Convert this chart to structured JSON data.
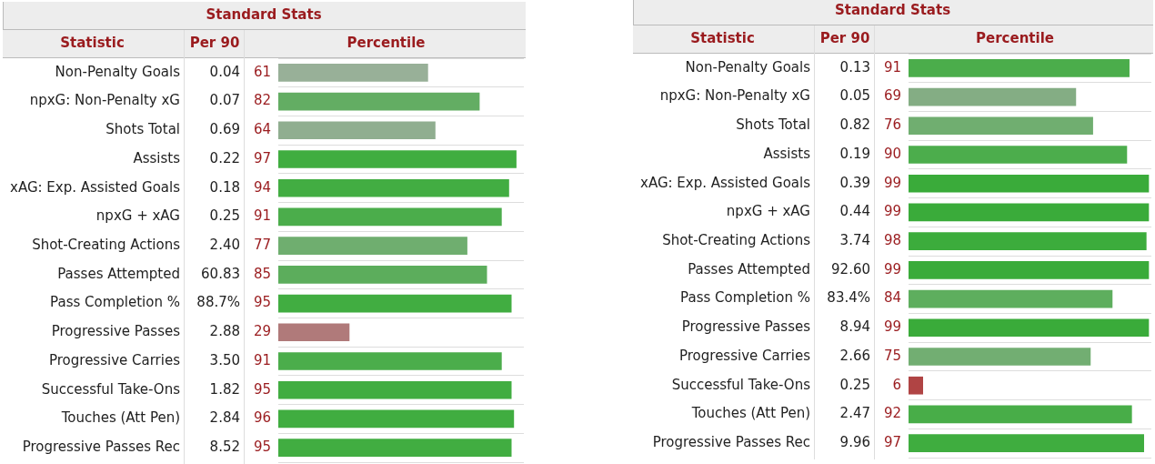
{
  "chart_data": [
    {
      "type": "bar",
      "orientation": "horizontal",
      "title": "Standard Stats",
      "ylabel": "Statistic",
      "xlabel": "Percentile",
      "categories": [
        "Non-Penalty Goals",
        "npxG: Non-Penalty xG",
        "Shots Total",
        "Assists",
        "xAG: Exp. Assisted Goals",
        "npxG + xAG",
        "Shot-Creating Actions",
        "Passes Attempted",
        "Pass Completion %",
        "Progressive Passes",
        "Progressive Carries",
        "Successful Take-Ons",
        "Touches (Att Pen)",
        "Progressive Passes Rec"
      ],
      "values": [
        61,
        82,
        64,
        97,
        94,
        91,
        77,
        85,
        95,
        29,
        91,
        95,
        96,
        95
      ],
      "colors": [
        "#98b098",
        "#63ad63",
        "#90ae90",
        "#40ad40",
        "#42ad42",
        "#4bad4b",
        "#6fae6f",
        "#5cad5c",
        "#41ad41",
        "#b07a7a",
        "#4bad4b",
        "#41ad41",
        "#40ad40",
        "#41ad41"
      ],
      "xlim": [
        0,
        100
      ],
      "data_labels": true,
      "tick_labels": "y",
      "grid": "y",
      "annotations": [
        "Per 90",
        "0.04",
        "0.07",
        "0.69",
        "0.22",
        "0.18",
        "0.25",
        "2.40",
        "60.83",
        "88.7%",
        "2.88",
        "3.50",
        "1.82",
        "2.84",
        "8.52"
      ]
    },
    {
      "type": "bar",
      "orientation": "horizontal",
      "title": "Standard Stats",
      "ylabel": "Statistic",
      "xlabel": "Percentile",
      "categories": [
        "Non-Penalty Goals",
        "npxG: Non-Penalty xG",
        "Shots Total",
        "Assists",
        "xAG: Exp. Assisted Goals",
        "npxG + xAG",
        "Shot-Creating Actions",
        "Passes Attempted",
        "Pass Completion %",
        "Progressive Passes",
        "Progressive Carries",
        "Successful Take-Ons",
        "Touches (Att Pen)",
        "Progressive Passes Rec"
      ],
      "values": [
        91,
        69,
        76,
        90,
        99,
        99,
        98,
        99,
        84,
        99,
        75,
        6,
        92,
        97
      ],
      "colors": [
        "#4bad4b",
        "#84ad84",
        "#70ae70",
        "#4cad4c",
        "#3aab3a",
        "#3aab3a",
        "#3cac3c",
        "#3aab3a",
        "#5eae5e",
        "#3aab3a",
        "#72ae72",
        "#b04444",
        "#48ad48",
        "#3fad3f"
      ],
      "xlim": [
        0,
        100
      ],
      "data_labels": true,
      "tick_labels": "y",
      "grid": "y",
      "annotations": [
        "Per 90",
        "0.13",
        "0.05",
        "0.82",
        "0.19",
        "0.39",
        "0.44",
        "3.74",
        "92.60",
        "83.4%",
        "8.94",
        "2.66",
        "0.25",
        "2.47",
        "9.96"
      ]
    }
  ]
}
